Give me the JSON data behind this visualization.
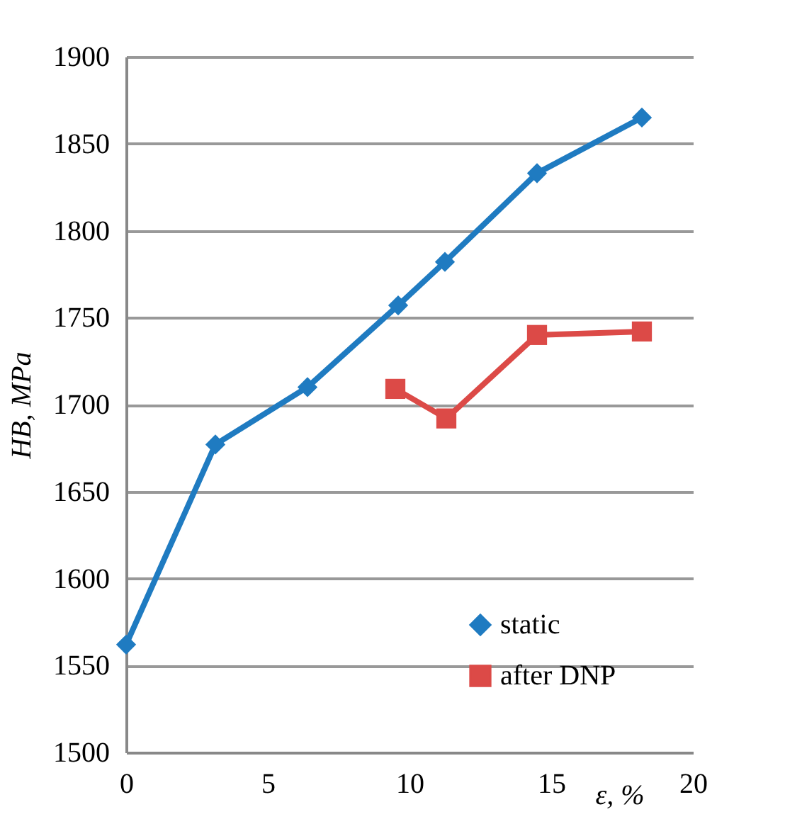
{
  "chart_data": {
    "type": "line",
    "xlabel": "ε, %",
    "ylabel": "HB, MPa",
    "xlim": [
      0,
      20
    ],
    "xticks": [
      0,
      5,
      10,
      15,
      20
    ],
    "ylim": [
      1500,
      1900
    ],
    "yticks": [
      1500,
      1550,
      1600,
      1650,
      1700,
      1750,
      1800,
      1850,
      1900
    ],
    "grid": "y",
    "legend": "bottom right",
    "series": [
      {
        "name": "static",
        "color": "#1f7bc1",
        "marker": "diamond",
        "x": [
          0,
          3.15,
          6.4,
          9.6,
          11.25,
          14.5,
          18.2
        ],
        "values": [
          1562,
          1677,
          1710,
          1757,
          1782,
          1833,
          1865
        ]
      },
      {
        "name": "after DNP",
        "color": "#dc4a47",
        "marker": "square",
        "x": [
          9.5,
          11.3,
          14.5,
          18.2
        ],
        "values": [
          1709,
          1692,
          1740,
          1742
        ]
      }
    ]
  }
}
